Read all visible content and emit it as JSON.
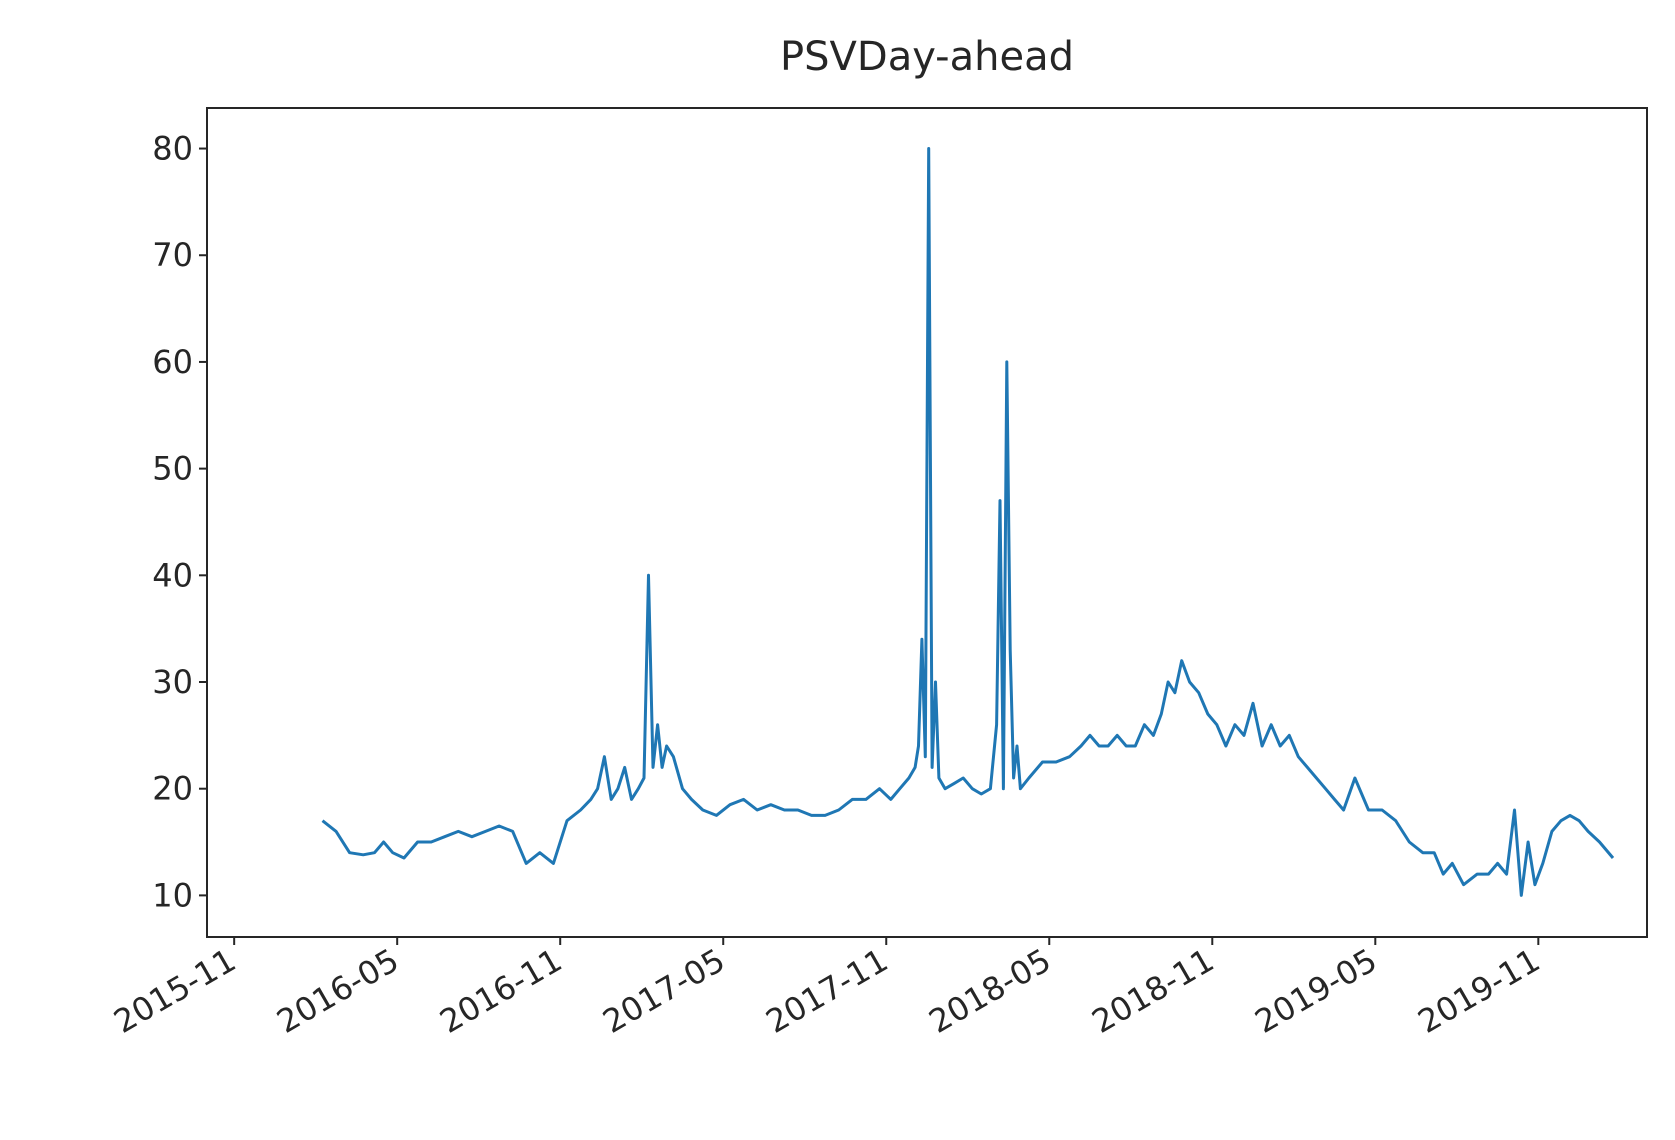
{
  "chart_data": {
    "type": "line",
    "title": "PSVDay-ahead",
    "color": "#1f77b4",
    "x": [
      "2016-02",
      "2016-02",
      "2016-03",
      "2016-03",
      "2016-04",
      "2016-04",
      "2016-04",
      "2016-05",
      "2016-05",
      "2016-06",
      "2016-06",
      "2016-07",
      "2016-07",
      "2016-08",
      "2016-08",
      "2016-09",
      "2016-09",
      "2016-10",
      "2016-10",
      "2016-11",
      "2016-11",
      "2016-12",
      "2016-12",
      "2016-12",
      "2016-12",
      "2017-01",
      "2017-01",
      "2017-01",
      "2017-01",
      "2017-02",
      "2017-02",
      "2017-02",
      "2017-02",
      "2017-02",
      "2017-02",
      "2017-03",
      "2017-03",
      "2017-03",
      "2017-04",
      "2017-04",
      "2017-05",
      "2017-05",
      "2017-06",
      "2017-06",
      "2017-07",
      "2017-07",
      "2017-08",
      "2017-08",
      "2017-09",
      "2017-09",
      "2017-10",
      "2017-10",
      "2017-11",
      "2017-11",
      "2017-11",
      "2017-12",
      "2017-12",
      "2017-12",
      "2017-12",
      "2017-12",
      "2017-12",
      "2017-12",
      "2017-12",
      "2018-01",
      "2018-01",
      "2018-01",
      "2018-02",
      "2018-02",
      "2018-02",
      "2018-03",
      "2018-03",
      "2018-03",
      "2018-03",
      "2018-03",
      "2018-03",
      "2018-03",
      "2018-03",
      "2018-04",
      "2018-04",
      "2018-05",
      "2018-05",
      "2018-06",
      "2018-06",
      "2018-06",
      "2018-07",
      "2018-07",
      "2018-07",
      "2018-08",
      "2018-08",
      "2018-08",
      "2018-09",
      "2018-09",
      "2018-09",
      "2018-09",
      "2018-10",
      "2018-10",
      "2018-10",
      "2018-11",
      "2018-11",
      "2018-11",
      "2018-12",
      "2018-12",
      "2018-12",
      "2019-01",
      "2019-01",
      "2019-01",
      "2019-02",
      "2019-02",
      "2019-02",
      "2019-03",
      "2019-03",
      "2019-03",
      "2019-04",
      "2019-04",
      "2019-05",
      "2019-05",
      "2019-06",
      "2019-06",
      "2019-07",
      "2019-07",
      "2019-07",
      "2019-08",
      "2019-08",
      "2019-09",
      "2019-09",
      "2019-09",
      "2019-10",
      "2019-10",
      "2019-10",
      "2019-10",
      "2019-11",
      "2019-11",
      "2019-11",
      "2019-12",
      "2019-12",
      "2019-12",
      "2020-01",
      "2020-01"
    ],
    "values": [
      17,
      16,
      14,
      13.8,
      14,
      15,
      14,
      13.5,
      15,
      15,
      15.5,
      16,
      15.5,
      16,
      16.5,
      16,
      13,
      14,
      13,
      17,
      18,
      19,
      20,
      23,
      19,
      20,
      22,
      19,
      20,
      21,
      40,
      22,
      26,
      22,
      24,
      23,
      20,
      19,
      18,
      17.5,
      18.5,
      19,
      18,
      18.5,
      18,
      18,
      17.5,
      17.5,
      18,
      19,
      19,
      20,
      19,
      20,
      21,
      22,
      24,
      34,
      23,
      80,
      22,
      30,
      21,
      20,
      20.5,
      21,
      20,
      19.5,
      20,
      26,
      47,
      20,
      60,
      33,
      21,
      24,
      20,
      21,
      22.5,
      22.5,
      23,
      24,
      25,
      24,
      24,
      25,
      24,
      24,
      26,
      25,
      27,
      30,
      29,
      32,
      30,
      29,
      27,
      26,
      24,
      26,
      25,
      28,
      24,
      26,
      24,
      25,
      23,
      22,
      21,
      20,
      19,
      18,
      21,
      18,
      18,
      17,
      15,
      14,
      14,
      12,
      13,
      11,
      12,
      12,
      13,
      12,
      18,
      10,
      15,
      11,
      13,
      16,
      17,
      17.5,
      17,
      16,
      15,
      13.5
    ],
    "xlim": [
      "2015-10",
      "2020-03"
    ],
    "xticks": [
      "2015-11",
      "2016-05",
      "2016-11",
      "2017-05",
      "2017-11",
      "2018-05",
      "2018-11",
      "2019-05",
      "2019-11"
    ],
    "ylim": [
      6.1,
      83.8
    ],
    "yticks": [
      10,
      20,
      30,
      40,
      50,
      60,
      70,
      80
    ]
  }
}
